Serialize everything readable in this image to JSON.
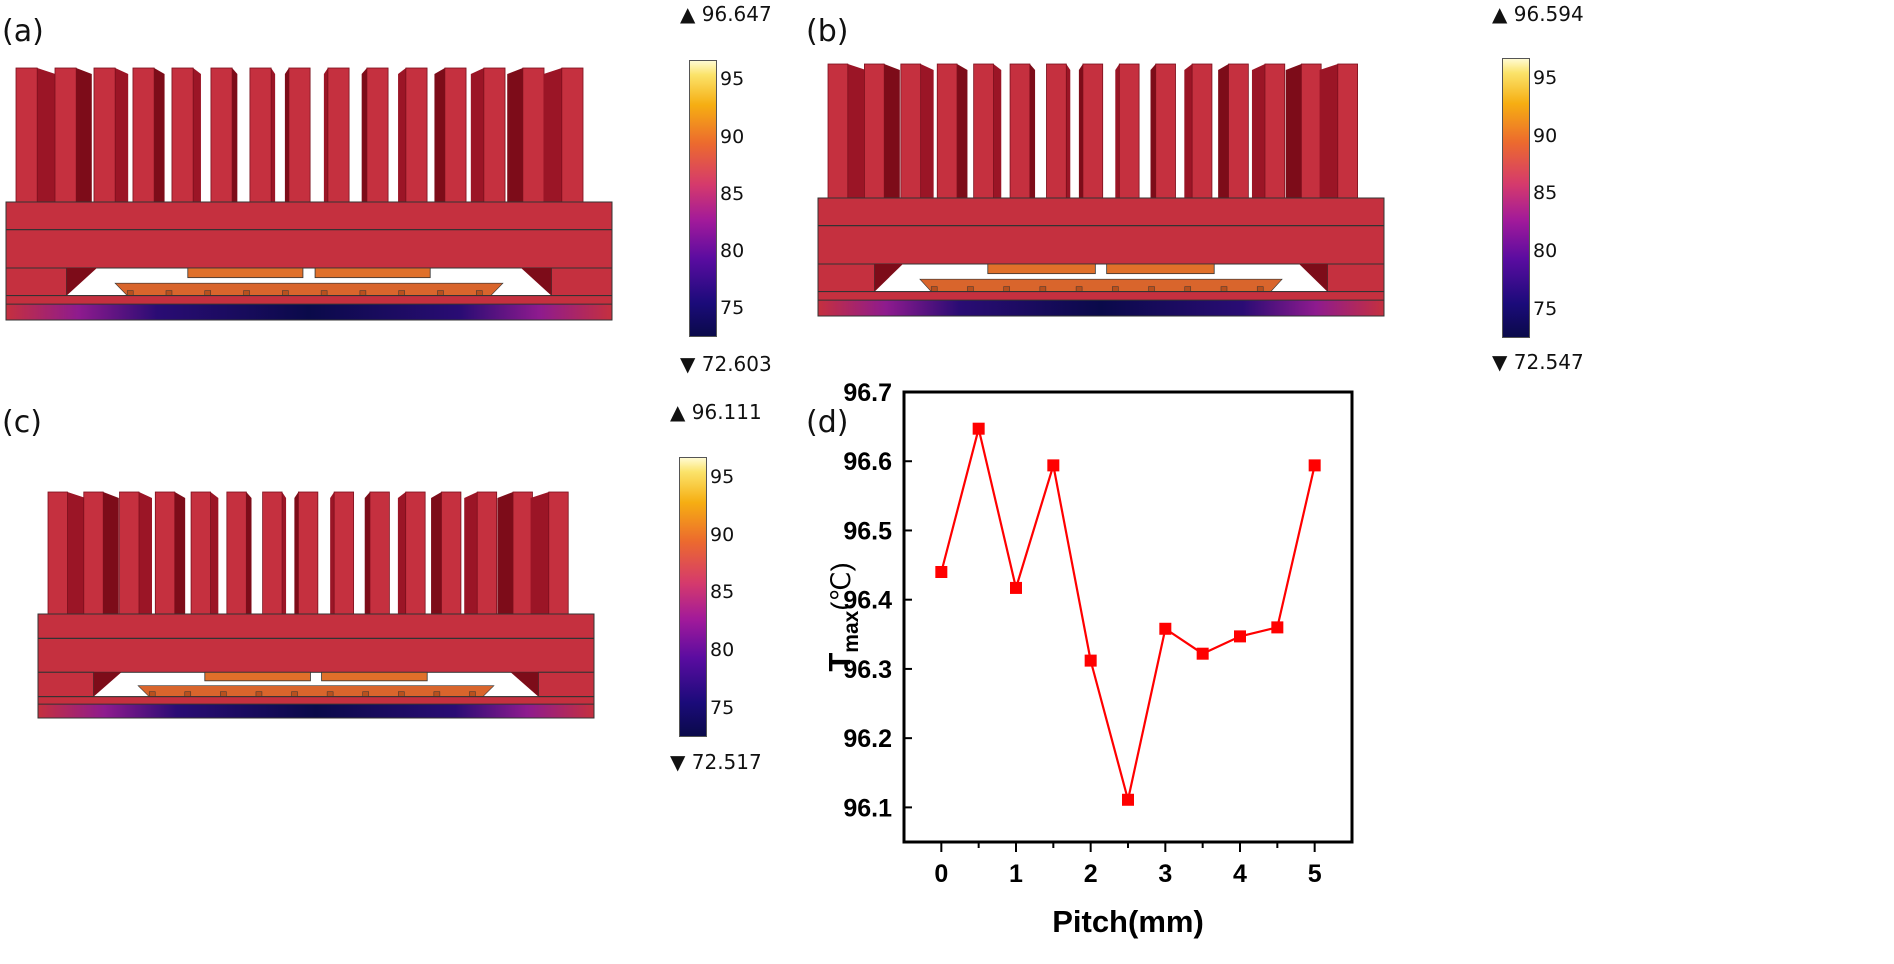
{
  "panels": {
    "a": {
      "label": "(a)",
      "max": "▲ 96.647",
      "min": "▼ 72.603"
    },
    "b": {
      "label": "(b)",
      "max": "▲ 96.594",
      "min": "▼ 72.547"
    },
    "c": {
      "label": "(c)",
      "max": "▲ 96.111",
      "min": "▼ 72.517"
    },
    "d": {
      "label": "(d)"
    }
  },
  "colorbar": {
    "ticks": [
      "95",
      "90",
      "85",
      "80",
      "75"
    ],
    "colors": {
      "low": "#0a0a4a",
      "mid": "#d53a6c",
      "high": "#fffbd2"
    }
  },
  "colors": {
    "fin_front": "#c5303f",
    "fin_side": "#7d0c19",
    "fin_side_alt": "#9b1526",
    "base": "#c5303f",
    "chip": "#e0702a",
    "marker": "#ff0000"
  },
  "chart_data": {
    "type": "line",
    "xlabel": "Pitch(mm)",
    "ylabel_main": "T",
    "ylabel_sub": "max",
    "ylabel_unit": "(℃)",
    "x": [
      0,
      0.5,
      1,
      1.5,
      2,
      2.5,
      3,
      3.5,
      4,
      4.5,
      5
    ],
    "values": [
      96.44,
      96.647,
      96.417,
      96.594,
      96.312,
      96.111,
      96.358,
      96.322,
      96.347,
      96.36,
      96.594
    ],
    "xlim": [
      -0.5,
      5.5
    ],
    "ylim": [
      96.05,
      96.7
    ],
    "xticks": [
      "0",
      "1",
      "2",
      "3",
      "4",
      "5"
    ],
    "yticks": [
      "96.1",
      "96.2",
      "96.3",
      "96.4",
      "96.5",
      "96.6",
      "96.7"
    ],
    "grid": false,
    "marker": "square"
  }
}
